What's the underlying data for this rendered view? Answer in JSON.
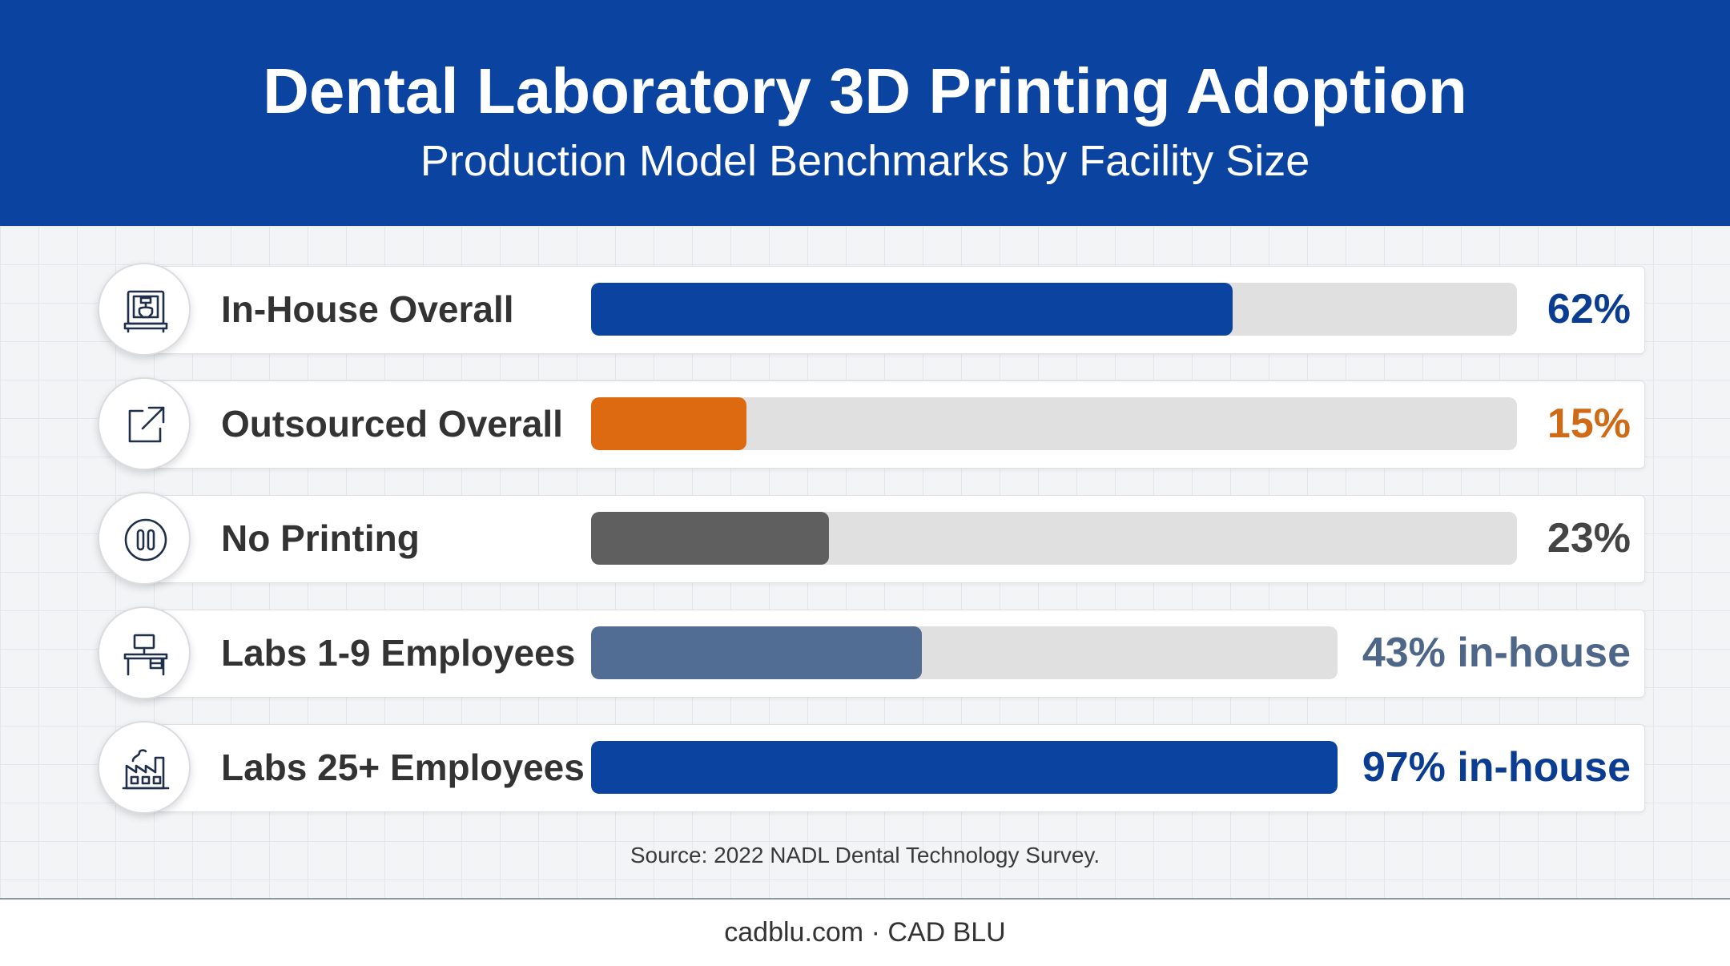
{
  "header": {
    "title": "Dental Laboratory 3D Printing Adoption",
    "subtitle": "Production Model Benchmarks by Facility Size"
  },
  "chart_data": {
    "type": "bar",
    "orientation": "horizontal",
    "title": "Dental Laboratory 3D Printing Adoption",
    "subtitle": "Production Model Benchmarks by Facility Size",
    "xlim": [
      0,
      100
    ],
    "grid": false,
    "legend": "none",
    "rows": [
      {
        "label": "In-House Overall",
        "value": 62,
        "value_label": "62%",
        "color": "#0a43a0",
        "text_color": "#0a3d91",
        "icon": "3d-printer-icon",
        "track": "full"
      },
      {
        "label": "Outsourced Overall",
        "value": 15,
        "value_label": "15%",
        "color": "#dd6a10",
        "text_color": "#cf6a16",
        "icon": "external-link-icon",
        "track": "full"
      },
      {
        "label": "No Printing",
        "value": 23,
        "value_label": "23%",
        "color": "#5f5f5f",
        "text_color": "#444444",
        "icon": "pause-icon",
        "track": "full"
      },
      {
        "label": "Labs 1-9 Employees",
        "value": 43,
        "value_label": "43% in-house",
        "color": "#516d94",
        "text_color": "#4e6789",
        "icon": "desk-icon",
        "track": "short"
      },
      {
        "label": "Labs 25+ Employees",
        "value": 97,
        "value_label": "97% in-house",
        "color": "#0a43a0",
        "text_color": "#0a3d91",
        "icon": "factory-icon",
        "track": "short"
      }
    ]
  },
  "source": "Source: 2022 NADL Dental Technology Survey.",
  "footer": "cadblu.com · CAD BLU"
}
